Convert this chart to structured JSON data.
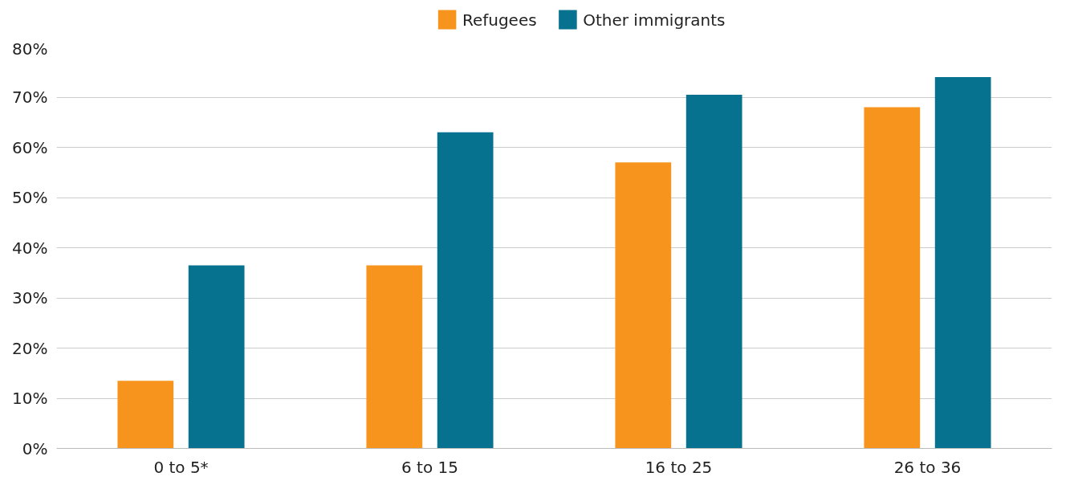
{
  "chart_data": {
    "type": "bar",
    "categories": [
      "0 to 5*",
      "6 to 15",
      "16 to 25",
      "26 to 36"
    ],
    "series": [
      {
        "name": "Refugees",
        "color": "#f7941d",
        "values": [
          13.5,
          36.5,
          57,
          68
        ]
      },
      {
        "name": "Other immigrants",
        "color": "#077190",
        "values": [
          36.5,
          63,
          70.5,
          74
        ]
      }
    ],
    "ylim": [
      0,
      80
    ],
    "yticks": [
      {
        "value": 0,
        "label": "0%"
      },
      {
        "value": 10,
        "label": "10%"
      },
      {
        "value": 20,
        "label": "20%"
      },
      {
        "value": 30,
        "label": "30%"
      },
      {
        "value": 40,
        "label": "40%"
      },
      {
        "value": 50,
        "label": "50%"
      },
      {
        "value": 60,
        "label": "60%"
      },
      {
        "value": 70,
        "label": "70%"
      },
      {
        "value": 80,
        "label": "80%"
      }
    ],
    "grid": "y",
    "legend": "top"
  }
}
